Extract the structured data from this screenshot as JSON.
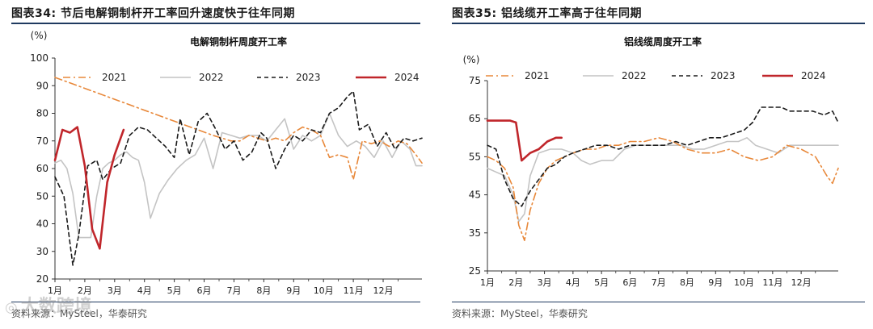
{
  "left_panel": {
    "figure_title": "图表34:  节后电解铜制杆开工率回升速度快于往年同期",
    "source": "资料来源：MySteel，华泰研究"
  },
  "right_panel": {
    "figure_title": "图表35:  铝线缆开工率高于往年同期",
    "source": "资料来源：MySteel，华泰研究"
  },
  "watermark": {
    "text": "大数跨境"
  },
  "colors": {
    "s2021": "#e8883a",
    "s2022": "#c4c4c4",
    "s2023": "#1a1a1a",
    "s2024": "#c0262b",
    "rule": "#1f3a60"
  },
  "chart_data": [
    {
      "type": "line",
      "title": "电解铜制杆周度开工率",
      "ylabel": "(%)",
      "ylim": [
        20,
        100
      ],
      "yticks": [
        20,
        30,
        40,
        50,
        60,
        70,
        80,
        90,
        100
      ],
      "x_range": [
        1,
        13.3
      ],
      "x_tick_positions": [
        1,
        2,
        3,
        4,
        5,
        6,
        7,
        8,
        9,
        10,
        11,
        12
      ],
      "x_tick_labels": [
        "1月",
        "2月",
        "3月",
        "4月",
        "5月",
        "6月",
        "7月",
        "8月",
        "9月",
        "10月",
        "11月",
        "12月"
      ],
      "series": [
        {
          "name": "2021",
          "style": "dashdot",
          "x": [
            1.0,
            6.3,
            6.6,
            6.9,
            7.2,
            7.5,
            7.8,
            8.1,
            8.4,
            8.7,
            9.0,
            9.3,
            9.6,
            9.9,
            10.2,
            10.5,
            10.8,
            11.0,
            11.3,
            11.6,
            11.9,
            12.2,
            12.5,
            12.8,
            13.1,
            13.3
          ],
          "y": [
            93,
            72,
            71,
            70,
            70,
            72,
            71,
            70,
            71,
            70,
            73,
            75,
            74,
            72,
            64,
            65,
            64,
            56,
            70,
            69,
            70,
            68,
            70,
            69,
            65,
            62
          ]
        },
        {
          "name": "2022",
          "style": "solid",
          "x": [
            1.0,
            1.2,
            1.4,
            1.6,
            1.8,
            2.0,
            2.2,
            2.4,
            2.6,
            2.8,
            3.0,
            3.2,
            3.4,
            3.6,
            3.8,
            4.0,
            4.2,
            4.5,
            4.8,
            5.1,
            5.4,
            5.7,
            6.0,
            6.3,
            6.6,
            6.9,
            7.2,
            7.5,
            7.8,
            8.1,
            8.4,
            8.7,
            9.0,
            9.3,
            9.6,
            9.9,
            10.2,
            10.5,
            10.8,
            11.1,
            11.4,
            11.7,
            12.0,
            12.3,
            12.6,
            12.9,
            13.1,
            13.3
          ],
          "y": [
            62,
            63,
            60,
            51,
            35,
            35,
            35,
            50,
            60,
            62,
            63,
            65,
            66,
            64,
            63,
            55,
            42,
            51,
            56,
            60,
            63,
            65,
            71,
            60,
            73,
            72,
            71,
            72,
            72,
            70,
            74,
            78,
            67,
            72,
            70,
            72,
            80,
            72,
            68,
            70,
            68,
            64,
            70,
            64,
            70,
            67,
            61,
            61
          ]
        },
        {
          "name": "2023",
          "style": "dashed",
          "x": [
            1.0,
            1.3,
            1.6,
            1.8,
            2.1,
            2.4,
            2.6,
            2.9,
            3.2,
            3.5,
            3.8,
            4.1,
            4.4,
            4.7,
            5.0,
            5.2,
            5.5,
            5.8,
            6.1,
            6.4,
            6.7,
            7.0,
            7.3,
            7.6,
            7.9,
            8.1,
            8.4,
            8.7,
            9.0,
            9.3,
            9.6,
            9.9,
            10.2,
            10.5,
            10.8,
            11.0,
            11.2,
            11.5,
            11.8,
            12.1,
            12.4,
            12.7,
            13.0,
            13.3
          ],
          "y": [
            57,
            50,
            25,
            36,
            61,
            63,
            56,
            60,
            62,
            72,
            75,
            74,
            71,
            68,
            64,
            78,
            65,
            77,
            80,
            74,
            67,
            70,
            63,
            66,
            73,
            71,
            60,
            67,
            72,
            70,
            74,
            73,
            80,
            82,
            86,
            88,
            74,
            76,
            68,
            73,
            67,
            71,
            70,
            71
          ]
        },
        {
          "name": "2024",
          "style": "solid-bold",
          "x": [
            1.0,
            1.25,
            1.5,
            1.75,
            2.0,
            2.25,
            2.5,
            2.75,
            3.0,
            3.3
          ],
          "y": [
            63,
            74,
            73,
            75,
            61,
            38,
            31,
            55,
            65,
            74
          ]
        }
      ]
    },
    {
      "type": "line",
      "title": "铝线缆周度开工率",
      "ylabel": "(%)",
      "ylim": [
        25,
        75
      ],
      "yticks": [
        25,
        35,
        45,
        55,
        65,
        75
      ],
      "x_range": [
        1,
        13.3
      ],
      "x_tick_positions": [
        1,
        2,
        3,
        4,
        5,
        6,
        7,
        8,
        9,
        10,
        11,
        12
      ],
      "x_tick_labels": [
        "1月",
        "2月",
        "3月",
        "4月",
        "5月",
        "6月",
        "7月",
        "8月",
        "9月",
        "10月",
        "11月",
        "12月"
      ],
      "series": [
        {
          "name": "2021",
          "style": "dashdot",
          "x": [
            1.0,
            1.3,
            1.6,
            1.9,
            2.1,
            2.3,
            2.5,
            2.8,
            3.1,
            3.4,
            3.7,
            4.0,
            4.4,
            4.8,
            5.2,
            5.6,
            6.0,
            6.5,
            7.0,
            7.5,
            8.0,
            8.5,
            9.0,
            9.5,
            10.0,
            10.5,
            11.0,
            11.5,
            12.0,
            12.5,
            12.9,
            13.1,
            13.3
          ],
          "y": [
            55,
            54,
            52,
            47,
            37,
            33,
            41,
            48,
            52,
            54,
            55,
            56,
            57,
            57,
            58,
            58,
            59,
            59,
            60,
            59,
            57,
            56,
            56,
            57,
            55,
            54,
            55,
            58,
            57,
            55,
            50,
            48,
            52
          ]
        },
        {
          "name": "2022",
          "style": "solid",
          "x": [
            1.0,
            1.3,
            1.6,
            1.9,
            2.1,
            2.3,
            2.5,
            2.8,
            3.2,
            3.6,
            4.0,
            4.3,
            4.6,
            5.0,
            5.4,
            5.8,
            6.2,
            6.6,
            7.0,
            7.4,
            7.8,
            8.2,
            8.6,
            9.0,
            9.4,
            9.8,
            10.1,
            10.4,
            10.8,
            11.2,
            11.6,
            12.0,
            12.5,
            13.0,
            13.3
          ],
          "y": [
            52,
            51,
            50,
            45,
            38,
            40,
            50,
            56,
            57,
            57,
            56,
            54,
            53,
            54,
            54,
            57,
            58,
            58,
            58,
            58,
            58,
            57,
            57,
            58,
            59,
            59,
            60,
            58,
            57,
            56,
            58,
            58,
            58,
            58,
            58
          ]
        },
        {
          "name": "2023",
          "style": "dashed",
          "x": [
            1.0,
            1.3,
            1.6,
            1.9,
            2.2,
            2.5,
            2.8,
            3.1,
            3.4,
            3.7,
            4.0,
            4.4,
            4.8,
            5.2,
            5.6,
            6.0,
            6.4,
            6.8,
            7.2,
            7.6,
            8.0,
            8.4,
            8.8,
            9.2,
            9.6,
            10.0,
            10.3,
            10.6,
            11.0,
            11.3,
            11.6,
            12.0,
            12.4,
            12.8,
            13.1,
            13.3
          ],
          "y": [
            58,
            57,
            49,
            44,
            42,
            46,
            49,
            52,
            53,
            55,
            56,
            57,
            58,
            58,
            57,
            58,
            58,
            58,
            58,
            59,
            58,
            59,
            60,
            60,
            61,
            62,
            64,
            68,
            68,
            68,
            67,
            67,
            67,
            66,
            67,
            64
          ]
        },
        {
          "name": "2024",
          "style": "solid-bold",
          "x": [
            1.0,
            1.4,
            1.8,
            2.0,
            2.2,
            2.5,
            2.8,
            3.1,
            3.4,
            3.6
          ],
          "y": [
            64.5,
            64.5,
            64.5,
            64,
            54,
            56,
            57,
            59,
            60,
            60
          ]
        }
      ]
    }
  ]
}
